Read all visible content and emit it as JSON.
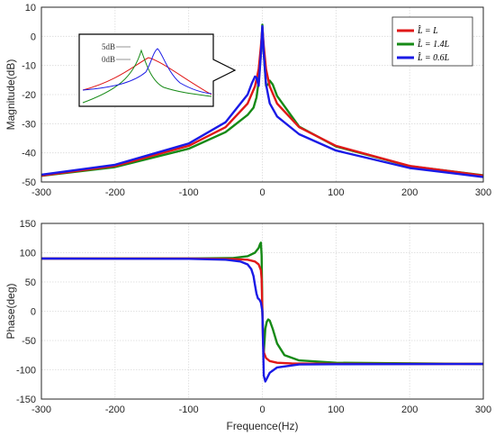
{
  "chart_data": [
    {
      "type": "line",
      "xlabel": "",
      "ylabel": "Magnitude(dB)",
      "xlim": [
        -300,
        300
      ],
      "ylim": [
        -50,
        10
      ],
      "x_ticks": [
        "-300",
        "-200",
        "-100",
        "0",
        "100",
        "200",
        "300"
      ],
      "y_ticks": [
        "10",
        "0",
        "-10",
        "-20",
        "-30",
        "-40",
        "-50"
      ],
      "grid": true,
      "legend": {
        "placement": "top-right",
        "entries": [
          "L̂ = L",
          "L̂ = 1.4L",
          "L̂ = 0.6L"
        ]
      },
      "series": [
        {
          "name": "L̂ = L",
          "color": "#e01818",
          "x": [
            -300,
            -200,
            -100,
            -50,
            -20,
            -10,
            -5,
            -2,
            0,
            2,
            5,
            10,
            20,
            50,
            100,
            200,
            300
          ],
          "y": [
            -47.8,
            -44.5,
            -37.6,
            -31.2,
            -23.1,
            -17.2,
            -11.3,
            -3.4,
            3.0,
            -3.4,
            -11.3,
            -17.2,
            -23.1,
            -31.2,
            -37.6,
            -44.5,
            -47.8
          ]
        },
        {
          "name": "L̂ = 1.4L",
          "color": "#168a16",
          "x": [
            -300,
            -200,
            -100,
            -50,
            -20,
            -12,
            -8,
            -5,
            -2,
            0,
            2,
            5,
            8,
            10,
            14,
            20,
            50,
            100,
            200,
            300
          ],
          "y": [
            -47.9,
            -44.9,
            -38.6,
            -32.9,
            -27.0,
            -24.5,
            -21.0,
            -15.5,
            -6.0,
            4.0,
            -6.0,
            -17.0,
            -16.5,
            -15.2,
            -16.5,
            -20.5,
            -31.0,
            -37.8,
            -44.6,
            -47.7
          ]
        },
        {
          "name": "L̂ = 0.6L",
          "color": "#1a1ae6",
          "x": [
            -300,
            -200,
            -100,
            -50,
            -20,
            -14,
            -10,
            -8,
            -5,
            -2,
            0,
            2,
            5,
            10,
            20,
            50,
            100,
            200,
            300
          ],
          "y": [
            -47.5,
            -44.1,
            -36.8,
            -29.5,
            -20.0,
            -16.0,
            -13.8,
            -14.2,
            -17.0,
            -6.0,
            3.5,
            -6.0,
            -16.5,
            -23.0,
            -27.5,
            -33.6,
            -39.2,
            -45.2,
            -48.3
          ]
        }
      ],
      "inset": {
        "labels": [
          "5dB",
          "0dB"
        ]
      }
    },
    {
      "type": "line",
      "xlabel": "Frequence(Hz)",
      "ylabel": "Phase(deg)",
      "xlim": [
        -300,
        300
      ],
      "ylim": [
        -150,
        150
      ],
      "x_ticks": [
        "-300",
        "-200",
        "-100",
        "0",
        "100",
        "200",
        "300"
      ],
      "y_ticks": [
        "150",
        "100",
        "50",
        "0",
        "-50",
        "-100",
        "-150"
      ],
      "grid": true,
      "series": [
        {
          "name": "L̂ = L",
          "color": "#e01818",
          "x": [
            -300,
            -100,
            -40,
            -20,
            -10,
            -5,
            -2,
            -1,
            0,
            1,
            2,
            5,
            10,
            20,
            40,
            100,
            300
          ],
          "y": [
            90,
            90,
            89,
            88,
            85,
            80,
            70,
            55,
            0,
            -55,
            -70,
            -80,
            -85,
            -88,
            -89,
            -90,
            -90
          ]
        },
        {
          "name": "L̂ = 1.4L",
          "color": "#168a16",
          "x": [
            -300,
            -100,
            -40,
            -20,
            -10,
            -5,
            -3,
            -2,
            -1,
            0,
            2,
            4,
            6,
            8,
            10,
            14,
            20,
            30,
            50,
            100,
            300
          ],
          "y": [
            90,
            90,
            91,
            94,
            100,
            108,
            115,
            117,
            95,
            0,
            -70,
            -30,
            -18,
            -14,
            -16,
            -30,
            -55,
            -75,
            -84,
            -88,
            -90
          ]
        },
        {
          "name": "L̂ = 0.6L",
          "color": "#1a1ae6",
          "x": [
            -300,
            -100,
            -50,
            -30,
            -20,
            -15,
            -12,
            -10,
            -8,
            -6,
            -4,
            -2,
            0,
            2,
            4,
            6,
            10,
            20,
            50,
            100,
            300
          ],
          "y": [
            90,
            89.5,
            88,
            85,
            80,
            72,
            60,
            45,
            30,
            22,
            20,
            15,
            0,
            -110,
            -120,
            -115,
            -105,
            -96,
            -91,
            -90.5,
            -90
          ]
        }
      ]
    }
  ]
}
